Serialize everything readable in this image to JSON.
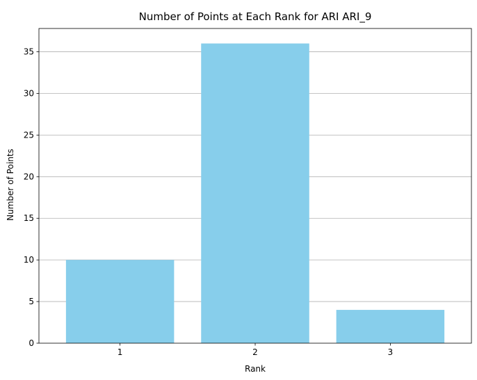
{
  "colors": {
    "bar": "#87CEEB",
    "grid": "#b0b0b0",
    "axis": "#000000"
  },
  "chart_data": {
    "type": "bar",
    "title": "Number of Points at Each Rank for ARI ARI_9",
    "xlabel": "Rank",
    "ylabel": "Number of Points",
    "categories": [
      "1",
      "2",
      "3"
    ],
    "values": [
      10,
      36,
      4
    ],
    "ylim": [
      0,
      37.8
    ],
    "yticks": [
      0,
      5,
      10,
      15,
      20,
      25,
      30,
      35
    ],
    "grid": "y"
  }
}
